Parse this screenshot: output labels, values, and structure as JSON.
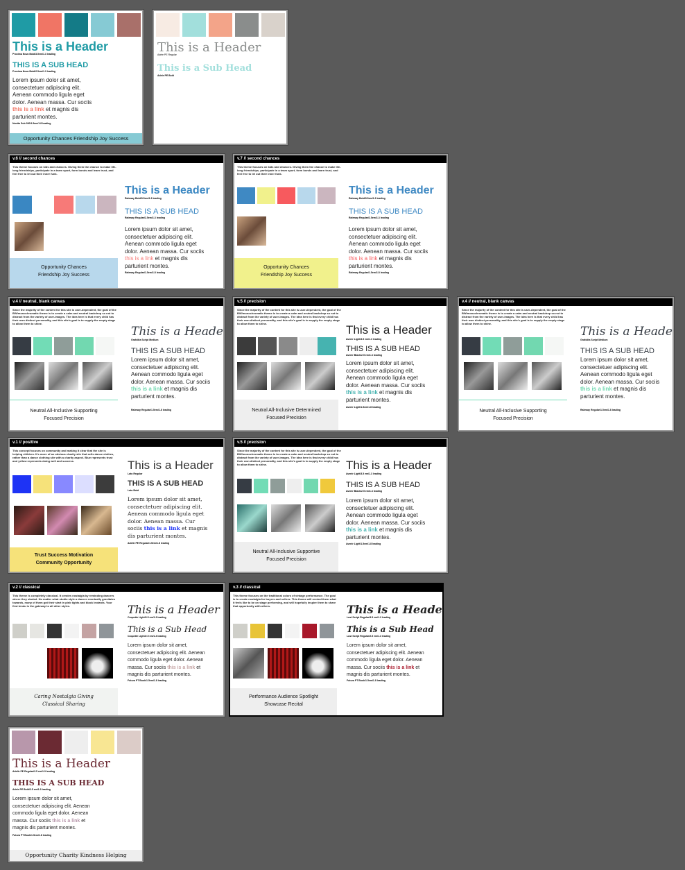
{
  "common": {
    "header": "This is a Header",
    "header_cursive": "This is a Header",
    "subhead_caps": "THIS IS A SUB HEAD",
    "subhead_title": "This is a Sub Head",
    "body_pre": "Lorem ipsum dolor sit amet, consectetuer adipiscing elit. Aenean commodo ligula eget dolor. Aenean massa. Cur sociis",
    "body_link": "this is a link",
    "body_post": "et magnis dis parturient montes."
  },
  "boards": {
    "b1": {
      "swatches": [
        "#1f9ba5",
        "#f07565",
        "#147b87",
        "#86cad4",
        "#a9706a"
      ],
      "header_caption": "Proxima Nova Bold/3.5em/1.3 leading",
      "subhead_caption": "Proxima Nova Bold/2.5em/1.3 leading",
      "body_caption": "Nunito Sub 300/1.5em/1.8 leading",
      "footer": "Opportunity   Chances   Friendship   Joy   Success"
    },
    "b2": {
      "swatches": [
        "#f7ebe3",
        "#a2dfdc",
        "#f3a489",
        "#8a8d8c",
        "#d9d2cb"
      ],
      "header_caption": "Adele PE Regular",
      "subhead": "This is a Sub Head",
      "subhead_caption": "Adele PE Bold"
    },
    "b3": {
      "title": "v.6 // second chances",
      "desc": "This theme focuses on kids and chances. Giving them the chance to make life-long friendships, participate in a team sport, form bonds and learn trust, and feel free to let out their inner funk.",
      "swatches": [
        "#3a87c2",
        "#ffffff",
        "#f77a78",
        "#b8d8ec",
        "#cbb6bf"
      ],
      "header_caption": "Raleway Bold/3.5em/1.3 leading",
      "subhead_caption": "Raleway Regular/2.5em/1.3 leading",
      "body_caption": "Raleway Regular/1.5em/1.8 leading",
      "footer1": "Opportunity   Chances",
      "footer2": "Friendship   Joy   Success"
    },
    "b4": {
      "title": "v.7 // second chances",
      "swatches": [
        "#3f89c3",
        "#f1f18c",
        "#f75a5e",
        "#b8d8ec",
        "#cbb6bf"
      ],
      "header_caption": "Raleway Bold/3.5em/1.3 leading",
      "subhead_caption": "Raleway Regular/2.5em/1.3 leading",
      "body_caption": "Raleway Regular/1.5em/1.8 leading",
      "footer1": "Opportunity   Chances",
      "footer2": "Friendship   Joy   Success"
    },
    "b5": {
      "title": "v.4 // neutral, blank canvas",
      "desc": "Since the majority of the content for this site is user-dependent, the goal of the BW/monochromatic theme is to create a calm and neutral backdrop so not to distract from the variety of user-images. The idea here is that every child has their own distinct personality, and this site's goal is to supply the empty stage to allow them to shine.",
      "swatches": [
        "#363c44",
        "#72dcb6",
        "#8f9d99",
        "#72d8b0",
        "#f5f7f5"
      ],
      "header_caption": "Grafolita Script Medium",
      "body_caption": "Raleway Regular/1.5em/1.8 leading",
      "footer1": "Neutral   All-Inclusive   Supporting",
      "footer2": "Focused   Precision"
    },
    "b6": {
      "title": "v.5 // precision",
      "swatches": [
        "#3b3b3b",
        "#555555",
        "#8a8a8a",
        "#eeeeee",
        "#46b3b0"
      ],
      "header_caption": "Avenir Light/3.5 em/1.3 leading",
      "subhead_caption": "Avenir Black/2.5 em/1.3 leading",
      "body_caption": "Avenir Light/1.5em/1.8 leading",
      "footer1": "Neutral   All-Inclusive   Determined",
      "footer2": "Focused   Precision"
    },
    "b7": {
      "title": "v.4 // neutral, blank canvas",
      "swatches": [
        "#363c44",
        "#72dcb6",
        "#8f9d99",
        "#72d8b0",
        "#f5f7f5"
      ],
      "header_caption": "Grafolita Script Medium",
      "body_caption": "Raleway Regular/1.5em/1.8 leading",
      "footer1": "Neutral   All-Inclusive   Supporting",
      "footer2": "Focused   Precision"
    },
    "b8": {
      "title": "v.1 // positive",
      "desc": "This concept focuses on community and making it clear that the site is helping children. It's more of an obvious charity site that sells dance clothes, rather than a dance clothing site with a charity aspect. Blue represents trust and yellow represents doing well and success.",
      "swatches": [
        "#1e33f5",
        "#f6e27a",
        "#8889ff",
        "#dcdeff",
        "#3c3c3c"
      ],
      "header_caption": "Lato Regular",
      "subhead_caption": "Lato Bold",
      "body_caption": "Adelle PE Regular/1.5em/1.8 leading",
      "footer1": "Trust   Success   Motivation",
      "footer2": "Community   Opportunity"
    },
    "b9": {
      "title": "v.5 // precision",
      "swatches": [
        "#363c44",
        "#72dcb6",
        "#8f9d99",
        "#eeeeee",
        "#72d8b0",
        "#f0c93c"
      ],
      "header_caption": "Avenir Light/3.5 em/1.3 leading",
      "subhead_caption": "Avenir Black/2.5 em/1.3 leading",
      "body_caption": "Avenir Light/1.5em/1.8 leading",
      "footer1": "Neutral   All-Inclusive   Supportive",
      "footer2": "Focused   Precision"
    },
    "b10": {
      "title": "v.2 // classical",
      "desc": "This theme is completely classical. It creates nostalgia by reminding dancers where they started. No matter what studio style a dancer eventually gravitates towards, many of them got their start in pink tights and black leotards. Your first tendu is the gateway to all other styles.",
      "swatches": [
        "#cfcfc9",
        "#e6e6e2",
        "#333333",
        "#f3f3f3",
        "#c4a3a3",
        "#8f9599"
      ],
      "header_caption": "Coquette Light/3.5 em/1.3 leading",
      "subhead_caption": "Coquette Light/2.5 em/1.3 leading",
      "body_caption": "Futura PT Book/1.5em/1.8 leading",
      "footer1": "Caring   Nostalgia   Giving",
      "footer2": "Classical   Sharing"
    },
    "b11": {
      "title": "v.3 // classical",
      "desc": "This theme focuses on the traditional colors of vintage performance. The goal is to create nostalgia for buyers and sellers. This theme will remind them what it feels like to be on stage performing, and will hopefully inspire them to share that opportunity with others.",
      "swatches": [
        "#cfcfc9",
        "#e8c437",
        "#333333",
        "#f3f3f3",
        "#a8182a",
        "#8f9599"
      ],
      "header_caption": "Lust Script Regular/3.5 em/1.3 leading",
      "subhead_caption": "Lust Script Regular/2.5 em/1.3 leading",
      "body_caption": "Futura PT Book/1.5em/1.8 leading",
      "footer1": "Performance   Audience   Spotlight",
      "footer2": "Showcase   Recital"
    },
    "b12": {
      "swatches": [
        "#b897ab",
        "#6b2a33",
        "#eeeeee",
        "#f8e693",
        "#dcccc8"
      ],
      "header_caption": "Adelle PE Regular/3.5 em/1.3 leading",
      "subhead_caption": "Adele PE Bold/2.5 em/1.3 leading",
      "body_caption": "Futura PT Book/1.5em/1.8 leading",
      "footer": "Opportunity    Charity    Kindness    Helping"
    }
  }
}
